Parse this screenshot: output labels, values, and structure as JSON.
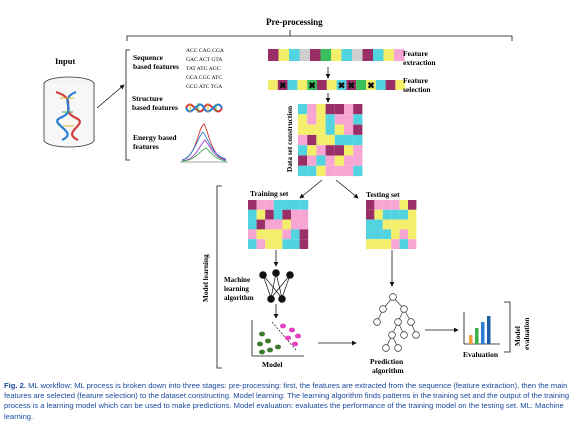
{
  "labels": {
    "preprocessing": "Pre-processing",
    "input": "Input",
    "sequence_features": [
      "Sequence",
      "based features"
    ],
    "structure_features": [
      "Structure",
      "based features"
    ],
    "energy_features": [
      "Energy based",
      "features"
    ],
    "feature_extraction": [
      "Feature",
      "extraction"
    ],
    "feature_selection": [
      "Feature",
      "selection"
    ],
    "dataset_construction": "Data set construction",
    "training_set": "Training set",
    "testing_set": "Testing set",
    "model_learning": "Model learning",
    "ml_algorithm": [
      "Machine",
      "learning",
      "algorithm"
    ],
    "model": "Model",
    "prediction_algorithm": [
      "Prediction",
      "algorithm"
    ],
    "evaluation": "Evaluation",
    "model_evaluation": [
      "Model",
      "evaluation"
    ]
  },
  "sequences": [
    "ACC CAG CGA",
    "GAC ACT GTA",
    "TAT ATG AGC",
    "GCA CGC ATC",
    "GCG ATC TGA"
  ],
  "caption": {
    "fig_label": "Fig. 2.",
    "text": " ML workflow: ML process is broken down into three stages: pre-processing: first, the features are extracted from the sequence (feature extraction), then the main features are selected (feature selection) to the dataset constructing. Model learning: The learning algorithm finds patterns in the training set and the output of the training process is a learning model which can be used to make predictions. Model evaluation: evaluates the performance of the training model on the testing set. ML: Machine learning."
  },
  "colors": {
    "magenta": "#9a2f68",
    "yellow": "#f4ef6a",
    "cyan": "#52d3e0",
    "pink": "#f7a6d4",
    "green": "#3ac05c",
    "gray": "#cfcfcf",
    "black": "#111111",
    "caption": "#1a4aa0"
  },
  "icons": [
    "dna-cylinder-icon",
    "dna-helix-icon",
    "energy-curve-icon",
    "neural-net-icon",
    "scatter-model-icon",
    "decision-tree-icon",
    "bar-chart-icon",
    "arrow-icon"
  ]
}
